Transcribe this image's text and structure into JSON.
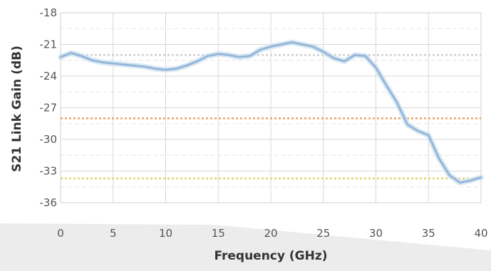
{
  "chart_data": {
    "type": "line",
    "title": "",
    "xlabel": "Frequency (GHz)",
    "ylabel": "S21 Link Gain (dB)",
    "xlim": [
      0,
      40
    ],
    "ylim": [
      -36,
      -18
    ],
    "xticks": [
      0,
      5,
      10,
      15,
      20,
      25,
      30,
      35,
      40
    ],
    "yticks": [
      -18,
      -21,
      -24,
      -27,
      -30,
      -33,
      -36
    ],
    "grid": true,
    "series": [
      {
        "color": "#8fb3d6",
        "x": [
          0,
          1,
          2,
          3,
          4,
          5,
          6,
          7,
          8,
          9,
          10,
          11,
          12,
          13,
          14,
          15,
          16,
          17,
          18,
          19,
          20,
          21,
          22,
          23,
          24,
          25,
          26,
          27,
          28,
          29,
          30,
          31,
          32,
          33,
          34,
          35,
          36,
          37,
          38,
          39,
          40
        ],
        "y": [
          -22.2,
          -21.8,
          -22.1,
          -22.5,
          -22.7,
          -22.8,
          -22.9,
          -23.0,
          -23.1,
          -23.3,
          -23.4,
          -23.3,
          -23.0,
          -22.6,
          -22.1,
          -21.9,
          -22.0,
          -22.2,
          -22.1,
          -21.5,
          -21.2,
          -21.0,
          -20.8,
          -21.0,
          -21.2,
          -21.7,
          -22.3,
          -22.6,
          -22.0,
          -22.1,
          -23.2,
          -24.9,
          -26.5,
          -28.6,
          -29.2,
          -29.6,
          -31.8,
          -33.4,
          -34.1,
          -33.9,
          -33.6
        ]
      }
    ],
    "reference_lines": [
      {
        "y": -22.0,
        "color": "#cfcfcf"
      },
      {
        "y": -28.0,
        "color": "#f0a060"
      },
      {
        "y": -33.7,
        "color": "#e6d26a"
      }
    ]
  }
}
